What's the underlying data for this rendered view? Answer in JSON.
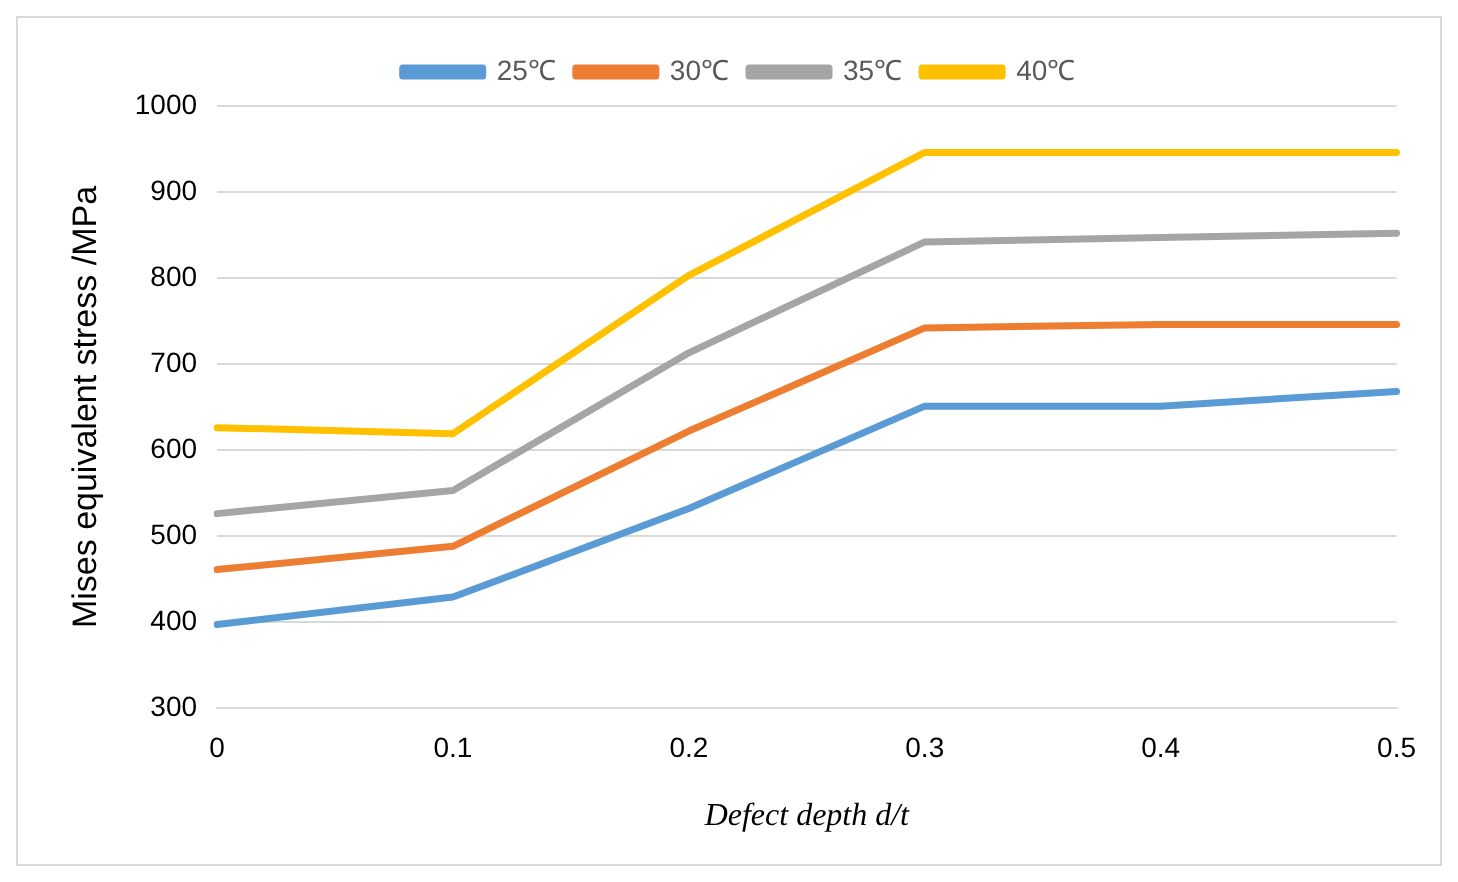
{
  "chart_data": {
    "type": "line",
    "xlabel": "Defect depth d/t",
    "ylabel": "Mises equivalent stress /MPa",
    "categories": [
      "0",
      "0.1",
      "0.2",
      "0.3",
      "0.4",
      "0.5"
    ],
    "series": [
      {
        "name": "25℃",
        "color": "#5b9bd5",
        "values": [
          397,
          429,
          532,
          651,
          651,
          668
        ]
      },
      {
        "name": "30℃",
        "color": "#ed7d31",
        "values": [
          461,
          488,
          622,
          742,
          746,
          746
        ]
      },
      {
        "name": "35℃",
        "color": "#a5a5a5",
        "values": [
          526,
          553,
          713,
          842,
          847,
          852
        ]
      },
      {
        "name": "40℃",
        "color": "#ffc000",
        "values": [
          626,
          619,
          803,
          946,
          946,
          946
        ]
      }
    ],
    "ylim": [
      300,
      1000
    ],
    "yticks": [
      300,
      400,
      500,
      600,
      700,
      800,
      900,
      1000
    ],
    "grid": "y",
    "legend": "top",
    "marker": "none",
    "line_style": "solid"
  }
}
